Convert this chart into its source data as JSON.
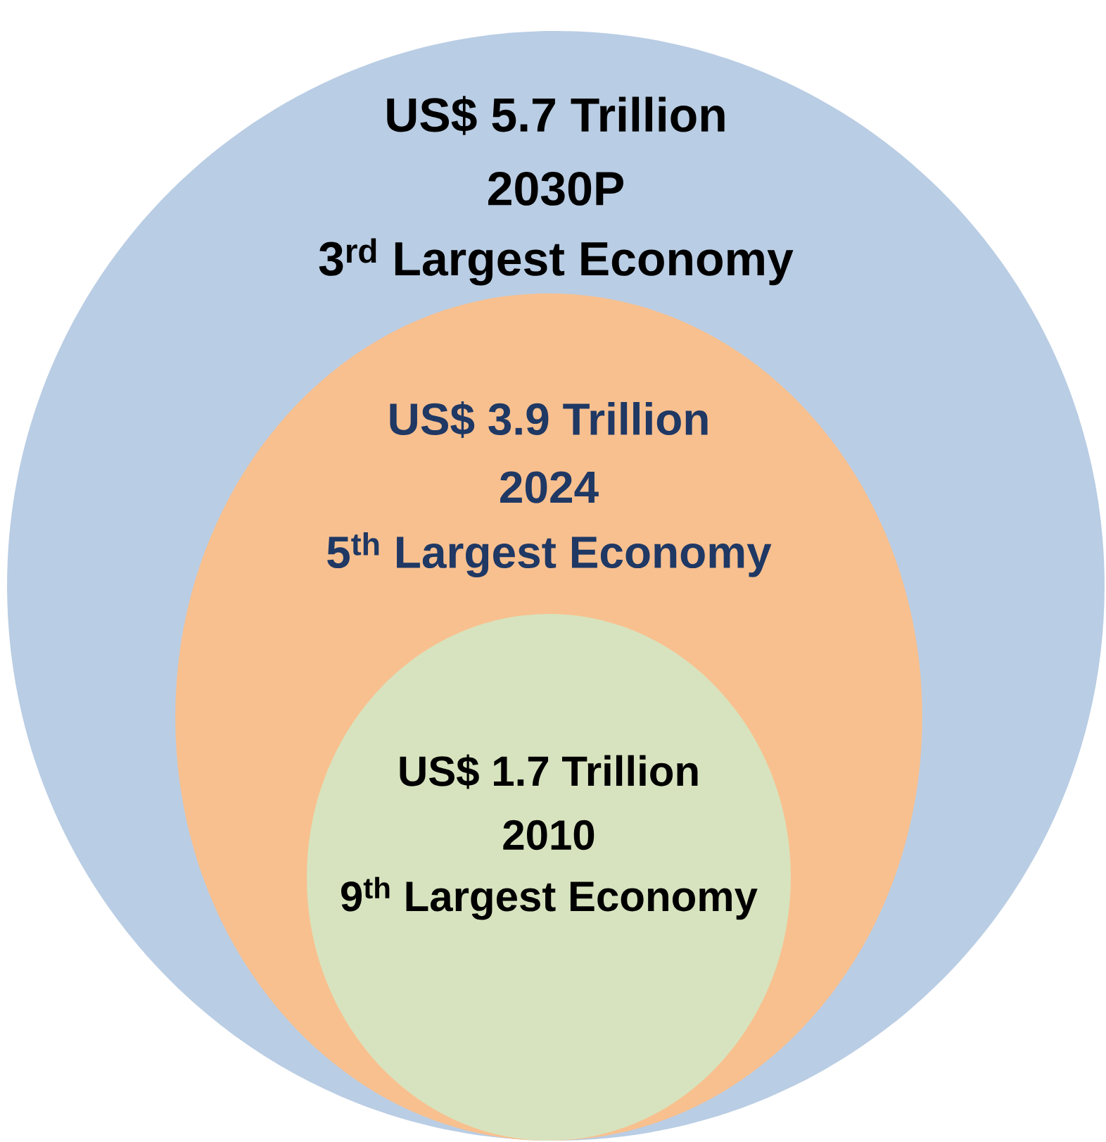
{
  "chart_data": {
    "type": "other",
    "categories": [
      "2030P",
      "2024",
      "2010"
    ],
    "values": [
      5.7,
      3.9,
      1.7
    ],
    "value_labels": [
      "US$ 5.7 Trillion",
      "US$ 3.9 Trillion",
      "US$ 1.7 Trillion"
    ],
    "annotations": [
      "3$^{rd}$ Largest Economy",
      "5$^{th}$ Largest Economy",
      "9$^{th}$ Largest Economy"
    ],
    "colors": [
      "#b9cde4",
      "#f8c08f",
      "#d7e3be"
    ]
  }
}
